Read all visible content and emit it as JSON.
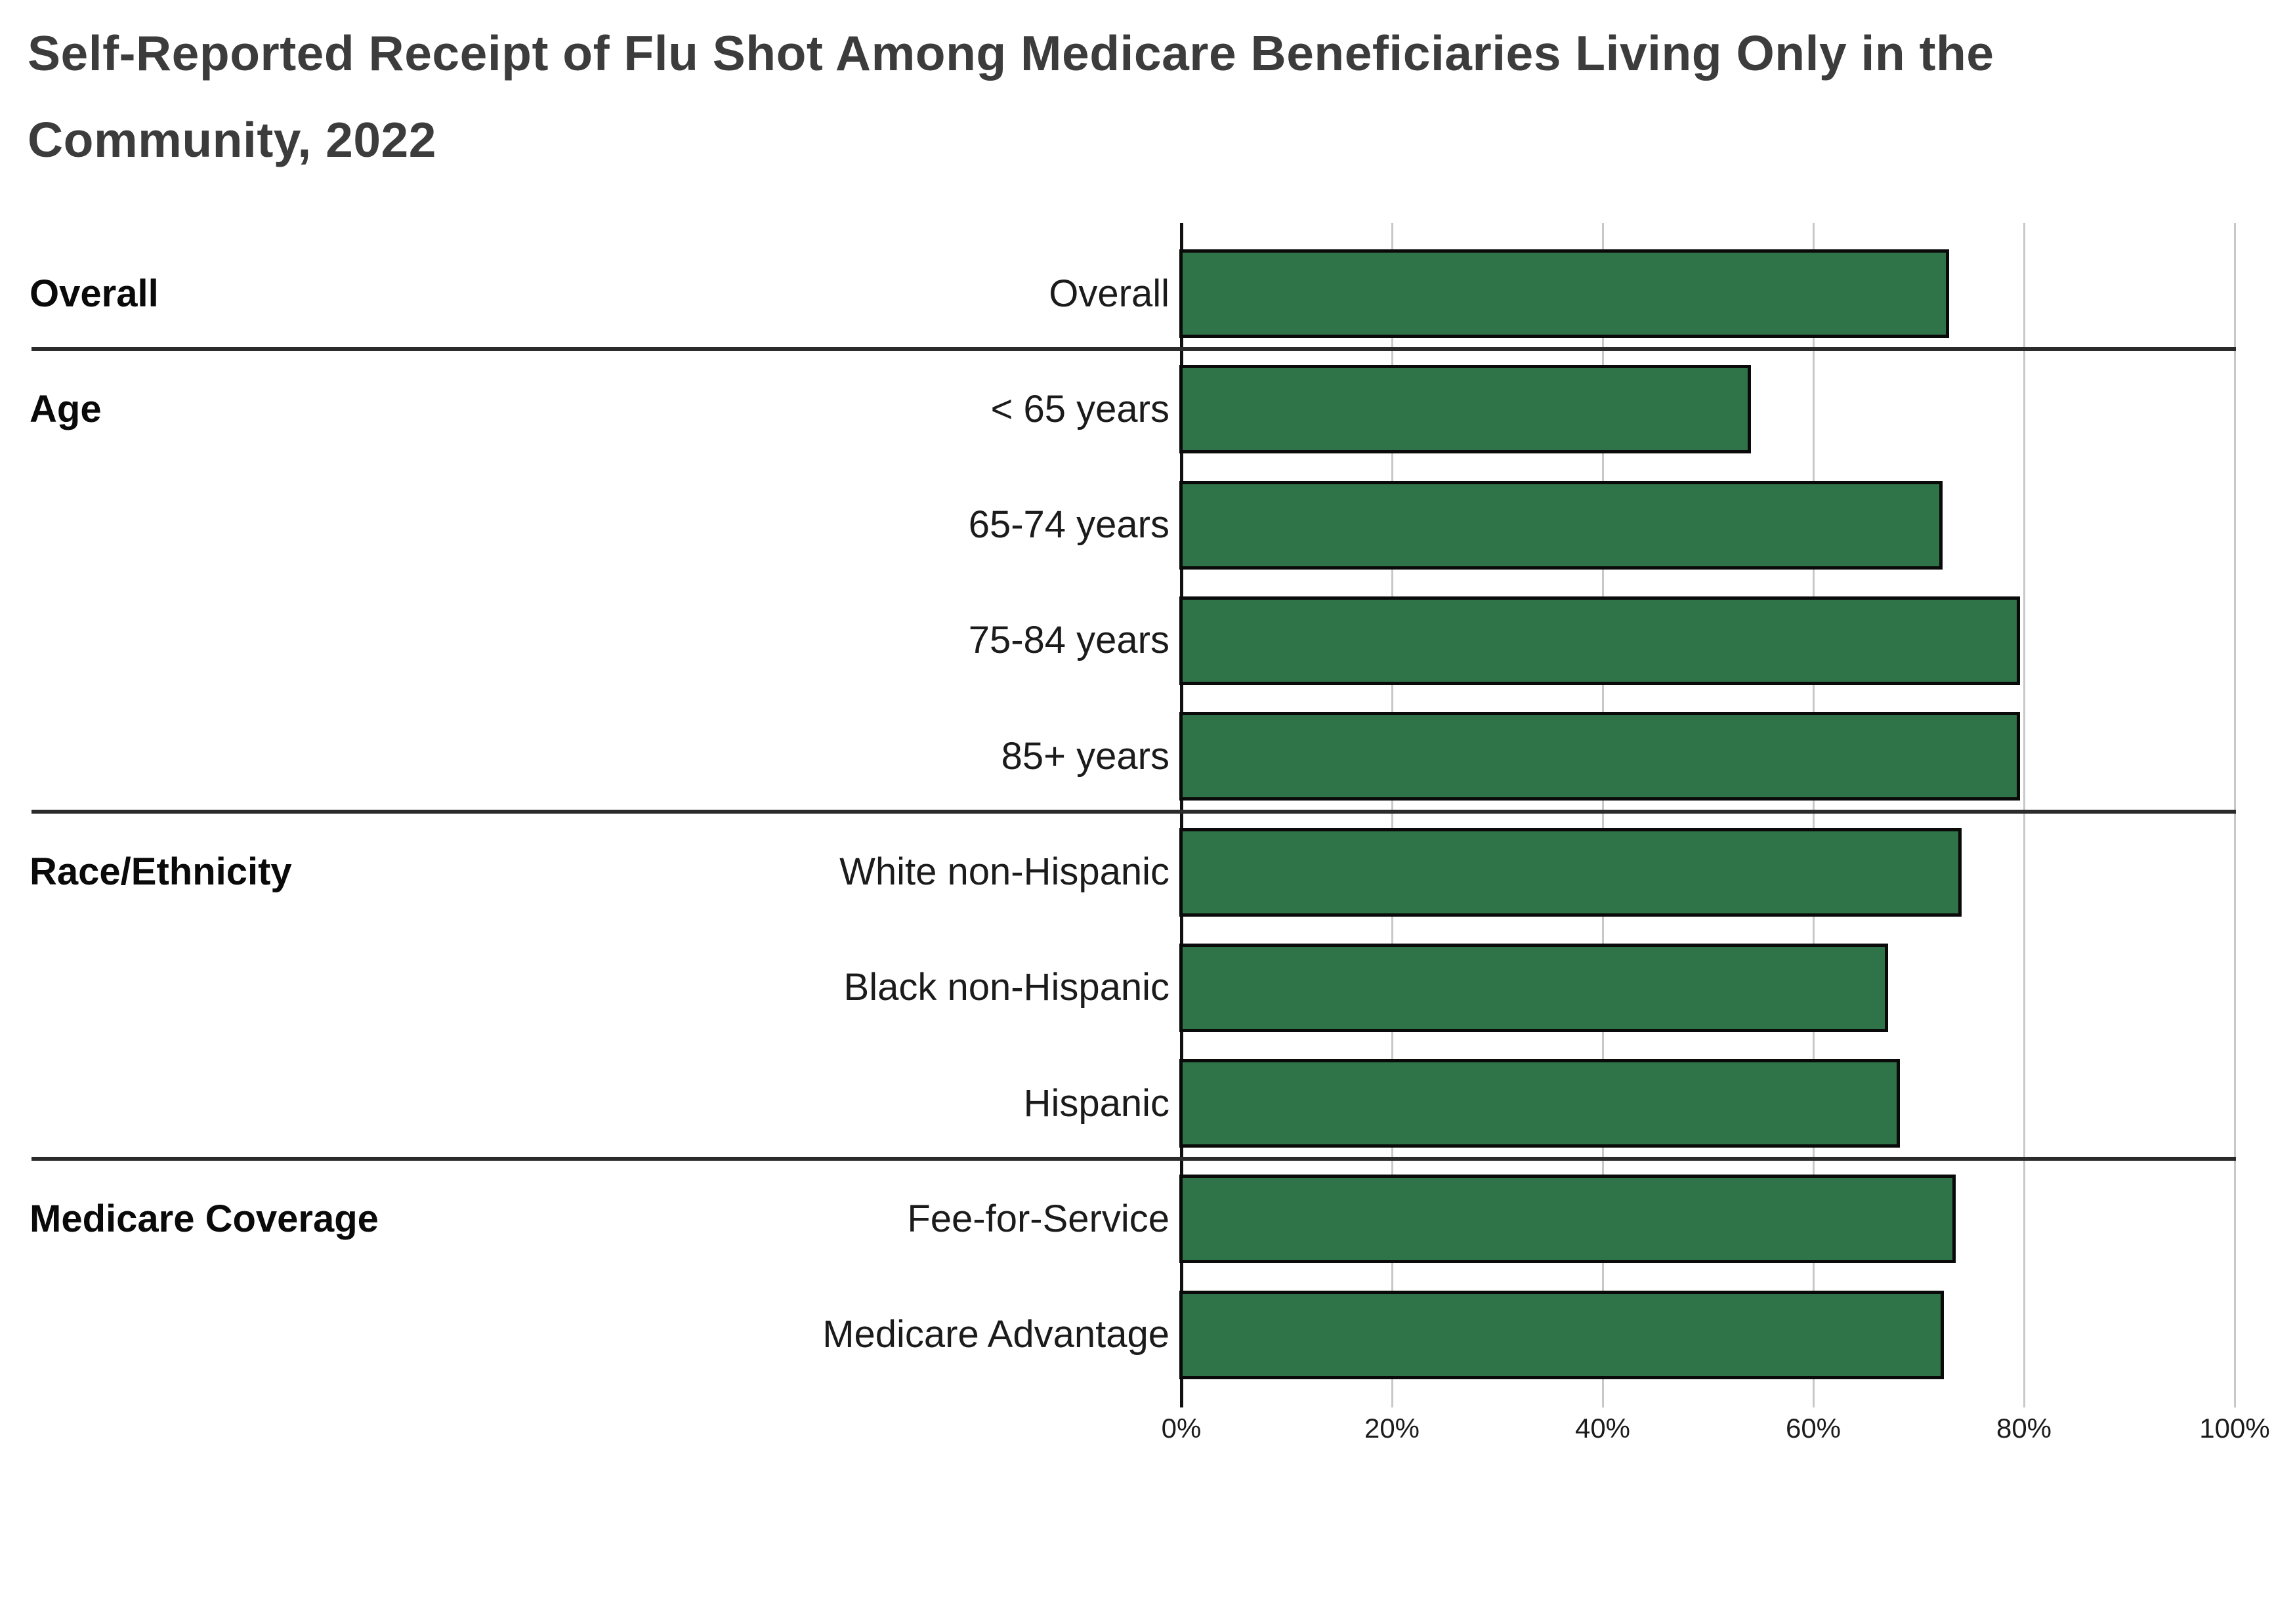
{
  "title": "Self-Reported Receipt of Flu Shot Among Medicare Beneficiaries Living Only in the Community, 2022",
  "title_lines": [
    "Self-Reported Receipt of Flu Shot Among Medicare Beneficiaries Living Only in the",
    "Community, 2022"
  ],
  "styles": {
    "title_color": "#3c3c3c",
    "label_color": "#1b1b1b",
    "section_label_color": "#0a0a0a",
    "grid_color": "#c8c8c8",
    "axis_color": "#111111",
    "divider_color": "#2b2b2b",
    "background_color": "#ffffff"
  },
  "chart_data": {
    "type": "bar",
    "orientation": "horizontal",
    "title": "Self-Reported Receipt of Flu Shot Among Medicare Beneficiaries Living Only in the Community, 2022",
    "xlabel": "",
    "ylabel": "",
    "xlim": [
      0,
      100
    ],
    "grid": true,
    "bar_color": "#2f7348",
    "bar_border_color": "#0a0a0a",
    "x_ticks": [
      {
        "label": "0%",
        "value": 0
      },
      {
        "label": "20%",
        "value": 20
      },
      {
        "label": "40%",
        "value": 40
      },
      {
        "label": "60%",
        "value": 60
      },
      {
        "label": "80%",
        "value": 80
      },
      {
        "label": "100%",
        "value": 100
      }
    ],
    "sections": [
      {
        "label": "Overall",
        "rows": [
          {
            "label": "Overall",
            "value": 72.9
          }
        ]
      },
      {
        "label": "Age",
        "rows": [
          {
            "label": "< 65 years",
            "value": 54.1
          },
          {
            "label": "65-74 years",
            "value": 72.3
          },
          {
            "label": "75-84 years",
            "value": 79.6
          },
          {
            "label": "85+ years",
            "value": 79.6
          }
        ]
      },
      {
        "label": "Race/Ethnicity",
        "rows": [
          {
            "label": "White non-Hispanic",
            "value": 74.1
          },
          {
            "label": "Black non-Hispanic",
            "value": 67.1
          },
          {
            "label": "Hispanic",
            "value": 68.2
          }
        ]
      },
      {
        "label": "Medicare Coverage",
        "rows": [
          {
            "label": "Fee-for-Service",
            "value": 73.5
          },
          {
            "label": "Medicare Advantage",
            "value": 72.4
          }
        ]
      }
    ]
  }
}
